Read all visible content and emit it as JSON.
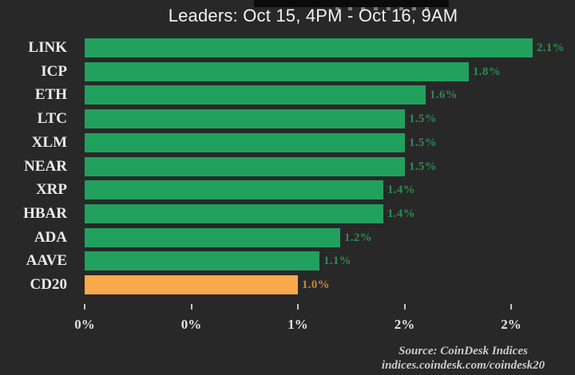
{
  "window": {
    "background": "#282828"
  },
  "header": {
    "redacted_top_line": true,
    "title": "Leaders: Oct 15, 4PM - Oct 16, 9AM"
  },
  "chart_data": {
    "type": "bar",
    "orientation": "horizontal",
    "title": "Leaders: Oct 15, 4PM - Oct 16, 9AM",
    "categories": [
      "LINK",
      "ICP",
      "ETH",
      "LTC",
      "XLM",
      "NEAR",
      "XRP",
      "HBAR",
      "ADA",
      "AAVE",
      "CD20"
    ],
    "values": [
      2.1,
      1.8,
      1.6,
      1.5,
      1.5,
      1.5,
      1.4,
      1.4,
      1.2,
      1.1,
      1.0
    ],
    "value_labels": [
      "2.1%",
      "1.8%",
      "1.6%",
      "1.5%",
      "1.5%",
      "1.5%",
      "1.4%",
      "1.4%",
      "1.2%",
      "1.1%",
      "1.0%"
    ],
    "highlight_category": "CD20",
    "colors": {
      "bar_default": "#22a05e",
      "bar_highlight": "#f8a94a",
      "value_text_default": "#2c8a55",
      "value_text_highlight": "#c9882f",
      "category_text": "#ebebeb"
    },
    "x_axis": {
      "tick_values": [
        0,
        0.5,
        1.0,
        1.5,
        2.0
      ],
      "tick_labels": [
        "0%",
        "0%",
        "1%",
        "2%",
        "2%"
      ],
      "range": [
        0,
        2.3
      ],
      "grid": false
    },
    "legend": "none",
    "xlabel": "",
    "ylabel": ""
  },
  "footer": {
    "source_line1": "Source: CoinDesk Indices",
    "source_line2": "indices.coindesk.com/coindesk20"
  }
}
